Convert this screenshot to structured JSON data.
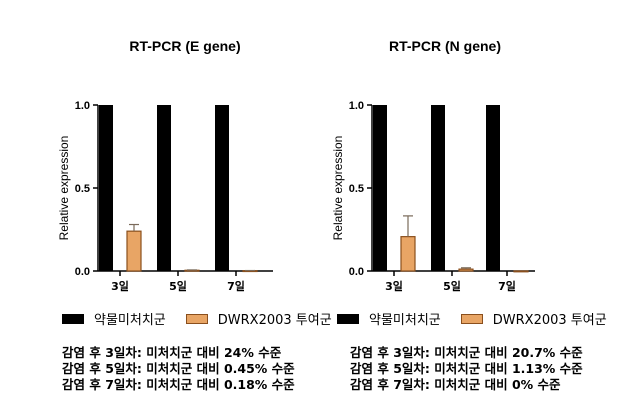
{
  "colors": {
    "control": "#000000",
    "treated": "#e8a565",
    "treated_border": "#8a4f1d",
    "axis": "#000000"
  },
  "chart_data": [
    {
      "type": "bar",
      "title": "RT-PCR (E gene)",
      "ylabel": "Relative expression",
      "xlabel": "",
      "ylim": [
        0,
        1.0
      ],
      "yticks": [
        "0.0",
        "0.5",
        "1.0"
      ],
      "categories": [
        "3일",
        "5일",
        "7일"
      ],
      "series": [
        {
          "name": "약물미처치군",
          "values": [
            1.0,
            1.0,
            1.0
          ],
          "errors": [
            0,
            0,
            0
          ]
        },
        {
          "name": "DWRX2003 투여군",
          "values": [
            0.24,
            0.0045,
            0.0018
          ],
          "errors": [
            0.04,
            0.002,
            0.001
          ]
        }
      ],
      "summary": [
        "감염 후 3일차: 미처치군 대비 24% 수준",
        "감염 후 5일차: 미처치군 대비 0.45% 수준",
        "감염 후 7일차: 미처치군 대비 0.18% 수준"
      ]
    },
    {
      "type": "bar",
      "title": "RT-PCR (N gene)",
      "ylabel": "Relative expression",
      "xlabel": "",
      "ylim": [
        0,
        1.0
      ],
      "yticks": [
        "0.0",
        "0.5",
        "1.0"
      ],
      "categories": [
        "3일",
        "5일",
        "7일"
      ],
      "series": [
        {
          "name": "약물미처치군",
          "values": [
            1.0,
            1.0,
            1.0
          ],
          "errors": [
            0,
            0,
            0
          ]
        },
        {
          "name": "DWRX2003 투여군",
          "values": [
            0.207,
            0.0113,
            0.0
          ],
          "errors": [
            0.125,
            0.008,
            0
          ]
        }
      ],
      "summary": [
        "감염 후 3일차: 미처치군 대비 20.7% 수준",
        "감염 후 5일차: 미처치군 대비 1.13% 수준",
        "감염 후 7일차: 미처치군 대비 0% 수준"
      ]
    }
  ]
}
